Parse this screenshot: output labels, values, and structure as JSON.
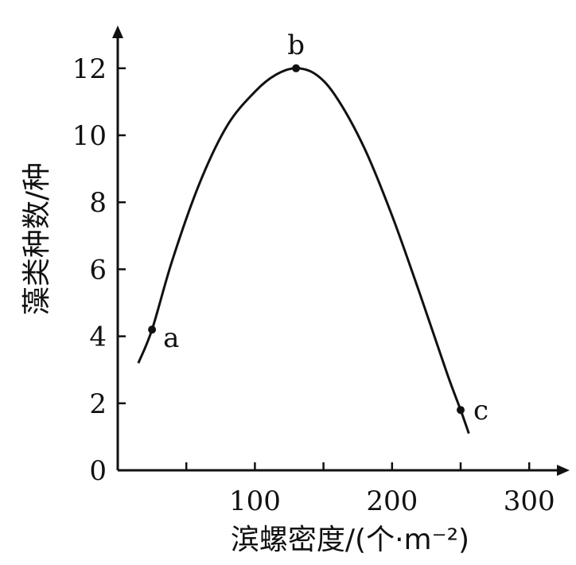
{
  "chart_data": {
    "type": "line",
    "xlabel": "滨螺密度/(个·m⁻²)",
    "ylabel": "藻类种数/种",
    "xlim": [
      0,
      330
    ],
    "ylim": [
      0,
      13
    ],
    "x_ticks": [
      0,
      50,
      100,
      150,
      200,
      250,
      300
    ],
    "x_tick_labels": [
      "0",
      "",
      "100",
      "",
      "200",
      "",
      "300"
    ],
    "y_ticks": [
      0,
      2,
      4,
      6,
      8,
      10,
      12
    ],
    "y_tick_labels": [
      "0",
      "2",
      "4",
      "6",
      "8",
      "10",
      "12"
    ],
    "series": [
      {
        "x": [
          15,
          25,
          40,
          60,
          80,
          100,
          115,
          130,
          145,
          160,
          180,
          200,
          220,
          240,
          250,
          256
        ],
        "y": [
          3.2,
          4.2,
          6.3,
          8.6,
          10.3,
          11.3,
          11.8,
          12.0,
          11.8,
          11.1,
          9.6,
          7.6,
          5.3,
          2.9,
          1.8,
          1.1
        ]
      }
    ],
    "points": [
      {
        "label": "a",
        "x": 25,
        "y": 4.2
      },
      {
        "label": "b",
        "x": 130,
        "y": 12.0
      },
      {
        "label": "c",
        "x": 250,
        "y": 1.8
      }
    ]
  }
}
